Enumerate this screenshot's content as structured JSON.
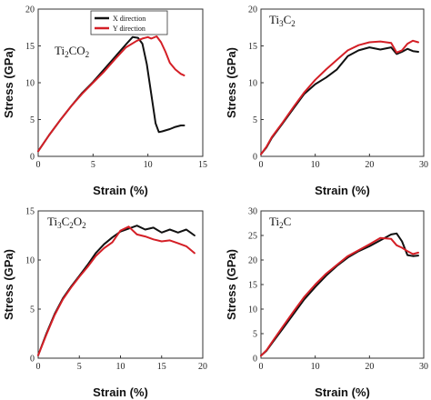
{
  "colors": {
    "x_direction": "#111111",
    "y_direction": "#d41f26"
  },
  "chart_data": [
    {
      "type": "line",
      "title": "Ti2CO2",
      "title_parts": [
        {
          "t": "Ti",
          "sub": false
        },
        {
          "t": "2",
          "sub": true
        },
        {
          "t": "CO",
          "sub": false
        },
        {
          "t": "2",
          "sub": true
        }
      ],
      "xlabel": "Strain (%)",
      "ylabel": "Stress (GPa)",
      "xlim": [
        0,
        15
      ],
      "ylim": [
        0,
        20
      ],
      "xticks": [
        0,
        5,
        10,
        15
      ],
      "yticks": [
        0,
        5,
        10,
        15,
        20
      ],
      "legend": {
        "placement": "top-right",
        "entries": [
          "X direction",
          "Y direction"
        ]
      },
      "series": [
        {
          "name": "X direction",
          "x": [
            0,
            1,
            2,
            3,
            4,
            5,
            6,
            7,
            8,
            8.6,
            9.1,
            9.5,
            9.9,
            10.3,
            10.7,
            11.0,
            11.3,
            12,
            12.5,
            13,
            13.3
          ],
          "y": [
            0.7,
            2.9,
            4.9,
            6.8,
            8.6,
            10.1,
            11.8,
            13.5,
            15.2,
            16.2,
            16.1,
            15.3,
            12.5,
            8.5,
            4.5,
            3.3,
            3.4,
            3.7,
            4.0,
            4.2,
            4.2
          ]
        },
        {
          "name": "Y direction",
          "x": [
            0,
            1,
            2,
            3,
            4,
            5,
            6,
            7,
            8,
            9,
            9.5,
            10,
            10.3,
            10.8,
            11.2,
            11.6,
            12,
            12.5,
            13,
            13.3
          ],
          "y": [
            0.7,
            2.9,
            4.9,
            6.8,
            8.5,
            10.0,
            11.5,
            13.2,
            14.8,
            15.7,
            16.0,
            16.2,
            16.0,
            16.3,
            15.5,
            14.2,
            12.7,
            11.8,
            11.2,
            11.0
          ]
        }
      ]
    },
    {
      "type": "line",
      "title": "Ti3C2",
      "title_parts": [
        {
          "t": "Ti",
          "sub": false
        },
        {
          "t": "3",
          "sub": true
        },
        {
          "t": "C",
          "sub": false
        },
        {
          "t": "2",
          "sub": true
        }
      ],
      "xlabel": "Strain (%)",
      "ylabel": "Stress (GPa)",
      "xlim": [
        0,
        30
      ],
      "ylim": [
        0,
        20
      ],
      "xticks": [
        0,
        10,
        20,
        30
      ],
      "yticks": [
        0,
        5,
        10,
        15,
        20
      ],
      "series": [
        {
          "name": "X direction",
          "x": [
            0,
            1,
            2,
            4,
            6,
            8,
            10,
            12,
            14,
            16,
            18,
            20,
            22,
            24,
            25,
            26,
            27,
            28,
            29
          ],
          "y": [
            0.3,
            1.2,
            2.5,
            4.5,
            6.5,
            8.5,
            9.8,
            10.7,
            11.8,
            13.6,
            14.4,
            14.8,
            14.5,
            14.8,
            13.9,
            14.2,
            14.6,
            14.3,
            14.2
          ]
        },
        {
          "name": "Y direction",
          "x": [
            0,
            1,
            2,
            4,
            6,
            8,
            10,
            12,
            14,
            16,
            18,
            20,
            22,
            24,
            25,
            26,
            27,
            28,
            29
          ],
          "y": [
            0.3,
            1.3,
            2.6,
            4.6,
            6.7,
            8.7,
            10.4,
            11.8,
            13.1,
            14.4,
            15.1,
            15.5,
            15.6,
            15.4,
            14.1,
            14.4,
            15.3,
            15.7,
            15.5
          ]
        }
      ]
    },
    {
      "type": "line",
      "title": "Ti3C2O2",
      "title_parts": [
        {
          "t": "Ti",
          "sub": false
        },
        {
          "t": "3",
          "sub": true
        },
        {
          "t": "C",
          "sub": false
        },
        {
          "t": "2",
          "sub": true
        },
        {
          "t": "O",
          "sub": false
        },
        {
          "t": "2",
          "sub": true
        }
      ],
      "xlabel": "Strain (%)",
      "ylabel": "Stress (GPa)",
      "xlim": [
        0,
        20
      ],
      "ylim": [
        0,
        15
      ],
      "xticks": [
        0,
        5,
        10,
        15,
        20
      ],
      "yticks": [
        0,
        5,
        10,
        15
      ],
      "series": [
        {
          "name": "X direction",
          "x": [
            0,
            1,
            2,
            3,
            4,
            5,
            6,
            7,
            8,
            9,
            10,
            11,
            12,
            13,
            14,
            15,
            16,
            17,
            18,
            19
          ],
          "y": [
            0.3,
            2.5,
            4.5,
            6.1,
            7.3,
            8.4,
            9.5,
            10.7,
            11.6,
            12.3,
            12.9,
            13.2,
            13.5,
            13.1,
            13.3,
            12.8,
            13.1,
            12.8,
            13.1,
            12.5
          ]
        },
        {
          "name": "Y direction",
          "x": [
            0,
            1,
            2,
            3,
            4,
            5,
            6,
            7,
            8,
            9,
            10,
            11,
            12,
            13,
            14,
            15,
            16,
            17,
            18,
            19
          ],
          "y": [
            0.3,
            2.4,
            4.4,
            6.0,
            7.2,
            8.3,
            9.3,
            10.4,
            11.2,
            11.8,
            13.0,
            13.4,
            12.6,
            12.4,
            12.1,
            11.9,
            12.0,
            11.7,
            11.4,
            10.7
          ]
        }
      ]
    },
    {
      "type": "line",
      "title": "Ti2C",
      "title_parts": [
        {
          "t": "Ti",
          "sub": false
        },
        {
          "t": "2",
          "sub": true
        },
        {
          "t": "C",
          "sub": false
        }
      ],
      "xlabel": "Strain (%)",
      "ylabel": "Stress (GPa)",
      "xlim": [
        0,
        30
      ],
      "ylim": [
        0,
        30
      ],
      "xticks": [
        0,
        10,
        20,
        30
      ],
      "yticks": [
        0,
        5,
        10,
        15,
        20,
        25,
        30
      ],
      "series": [
        {
          "name": "X direction",
          "x": [
            0,
            1,
            2,
            4,
            6,
            8,
            10,
            12,
            14,
            16,
            18,
            20,
            22,
            24,
            25,
            26,
            27,
            28,
            29
          ],
          "y": [
            0.5,
            1.5,
            3.0,
            6.0,
            9.0,
            12.0,
            14.5,
            16.8,
            18.8,
            20.5,
            21.8,
            22.8,
            24.0,
            25.2,
            25.4,
            23.8,
            21.0,
            20.8,
            20.9
          ]
        },
        {
          "name": "Y direction",
          "x": [
            0,
            1,
            2,
            4,
            6,
            8,
            10,
            12,
            14,
            16,
            18,
            20,
            22,
            24,
            25,
            26,
            27,
            28,
            29
          ],
          "y": [
            0.5,
            1.6,
            3.2,
            6.4,
            9.5,
            12.5,
            15.0,
            17.2,
            19.0,
            20.8,
            22.0,
            23.2,
            24.5,
            24.3,
            23.0,
            22.5,
            21.8,
            21.2,
            21.5
          ]
        }
      ]
    }
  ]
}
